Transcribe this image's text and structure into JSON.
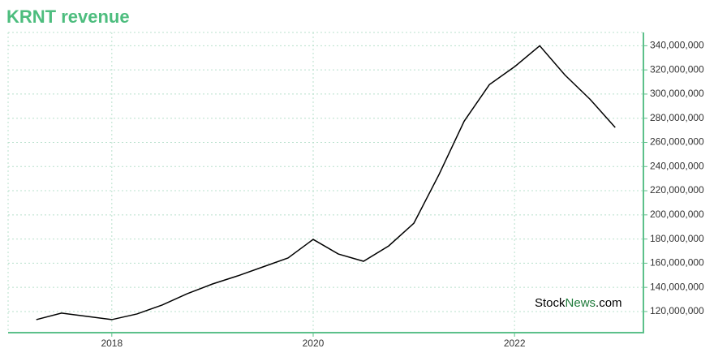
{
  "chart_data": {
    "type": "line",
    "title": "KRNT revenue",
    "x": [
      2017.25,
      2017.5,
      2017.75,
      2018,
      2018.25,
      2018.5,
      2018.75,
      2019,
      2019.25,
      2019.5,
      2019.75,
      2020,
      2020.25,
      2020.5,
      2020.75,
      2021,
      2021.25,
      2021.5,
      2021.75,
      2022,
      2022.25,
      2022.5,
      2022.75,
      2023
    ],
    "series": [
      {
        "name": "revenue",
        "color": "#000000",
        "values": [
          113300000,
          118700000,
          116000000,
          113300000,
          118000000,
          125400000,
          134800000,
          142800000,
          149500000,
          156900000,
          164300000,
          179700000,
          167600000,
          161600000,
          174300000,
          193100000,
          233400000,
          277600000,
          307800000,
          322600000,
          340000000,
          315800000,
          295700000,
          272300000
        ]
      }
    ],
    "xlim": [
      2016.97,
      2023.28
    ],
    "xticks": [
      2018,
      2020,
      2022
    ],
    "ylim": [
      102500000,
      351000000
    ],
    "yticks": [
      {
        "value": 120000000,
        "label": "120,000,000"
      },
      {
        "value": 140000000,
        "label": "140,000,000"
      },
      {
        "value": 160000000,
        "label": "160,000,000"
      },
      {
        "value": 180000000,
        "label": "180,000,000"
      },
      {
        "value": 200000000,
        "label": "200,000,000"
      },
      {
        "value": 220000000,
        "label": "220,000,000"
      },
      {
        "value": 240000000,
        "label": "240,000,000"
      },
      {
        "value": 260000000,
        "label": "260,000,000"
      },
      {
        "value": 280000000,
        "label": "280,000,000"
      },
      {
        "value": 300000000,
        "label": "300,000,000"
      },
      {
        "value": 320000000,
        "label": "320,000,000"
      },
      {
        "value": 340000000,
        "label": "340,000,000"
      }
    ],
    "grid": true,
    "axis_color": "#5cc08a",
    "watermark": [
      "Stock",
      "News",
      ".com"
    ]
  }
}
